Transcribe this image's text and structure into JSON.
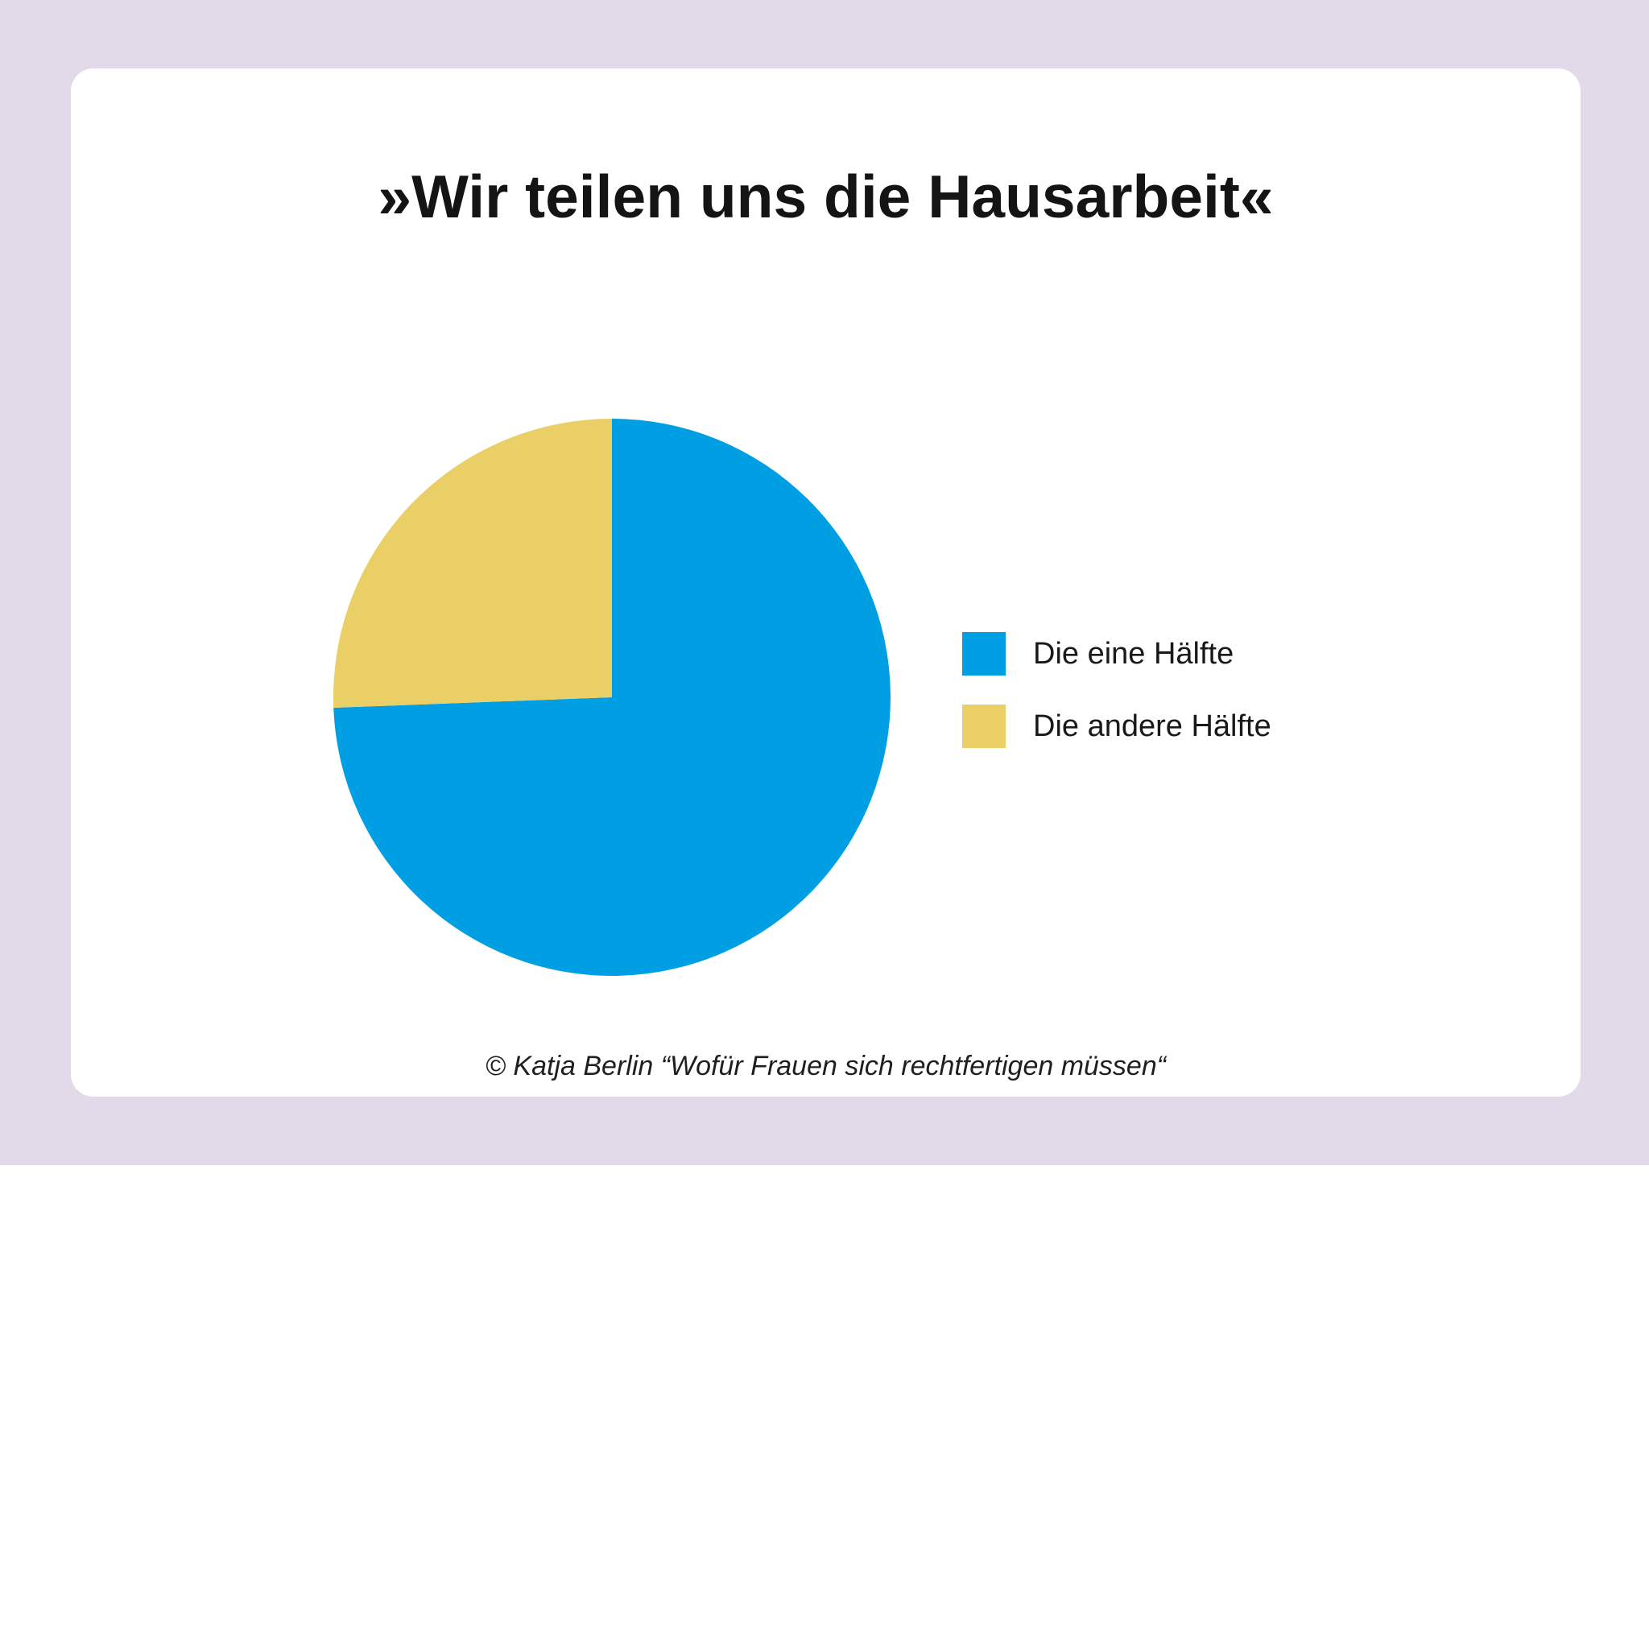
{
  "page": {
    "background_color": "#ffffff",
    "band_color": "#E3DAE9",
    "card_color": "#ffffff"
  },
  "title": "»Wir teilen uns die Hausarbeit«",
  "legend": {
    "position": "right",
    "items": [
      {
        "label": "Die eine Hälfte",
        "color": "#009EE3"
      },
      {
        "label": "Die andere Hälfte",
        "color": "#EACF67"
      }
    ]
  },
  "attribution": "© Katja Berlin “Wofür Frauen sich rechtfertigen müssen“",
  "chart_data": {
    "type": "pie",
    "title": "»Wir teilen uns die Hausarbeit«",
    "unit": "percent",
    "start_angle_deg": 0,
    "direction": "clockwise",
    "legend_position": "right",
    "slices": [
      {
        "label": "Die eine Hälfte",
        "value": 74.4,
        "color": "#009EE3"
      },
      {
        "label": "Die andere Hälfte",
        "value": 25.6,
        "color": "#EACF67"
      }
    ]
  }
}
